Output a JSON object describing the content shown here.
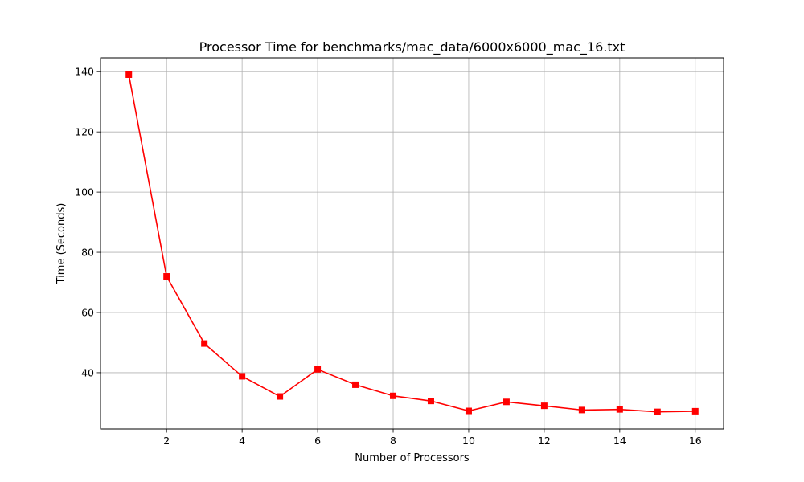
{
  "chart_data": {
    "type": "line",
    "title": "Processor Time for benchmarks/mac_data/6000x6000_mac_16.txt",
    "xlabel": "Number of Processors",
    "ylabel": "Time (Seconds)",
    "xlim": [
      0.25,
      16.75
    ],
    "ylim": [
      21.3,
      144.6
    ],
    "x_ticks": [
      2,
      4,
      6,
      8,
      10,
      12,
      14,
      16
    ],
    "y_ticks": [
      40,
      60,
      80,
      100,
      120,
      140
    ],
    "grid": true,
    "series": [
      {
        "color": "#ff0000",
        "marker": "square",
        "x": [
          1,
          2,
          3,
          4,
          5,
          6,
          7,
          8,
          9,
          10,
          11,
          12,
          13,
          14,
          15,
          16
        ],
        "values": [
          139.0,
          72.0,
          49.7,
          38.8,
          32.1,
          41.1,
          36.0,
          32.3,
          30.6,
          27.3,
          30.3,
          29.0,
          27.6,
          27.8,
          27.0,
          27.2
        ]
      }
    ]
  }
}
